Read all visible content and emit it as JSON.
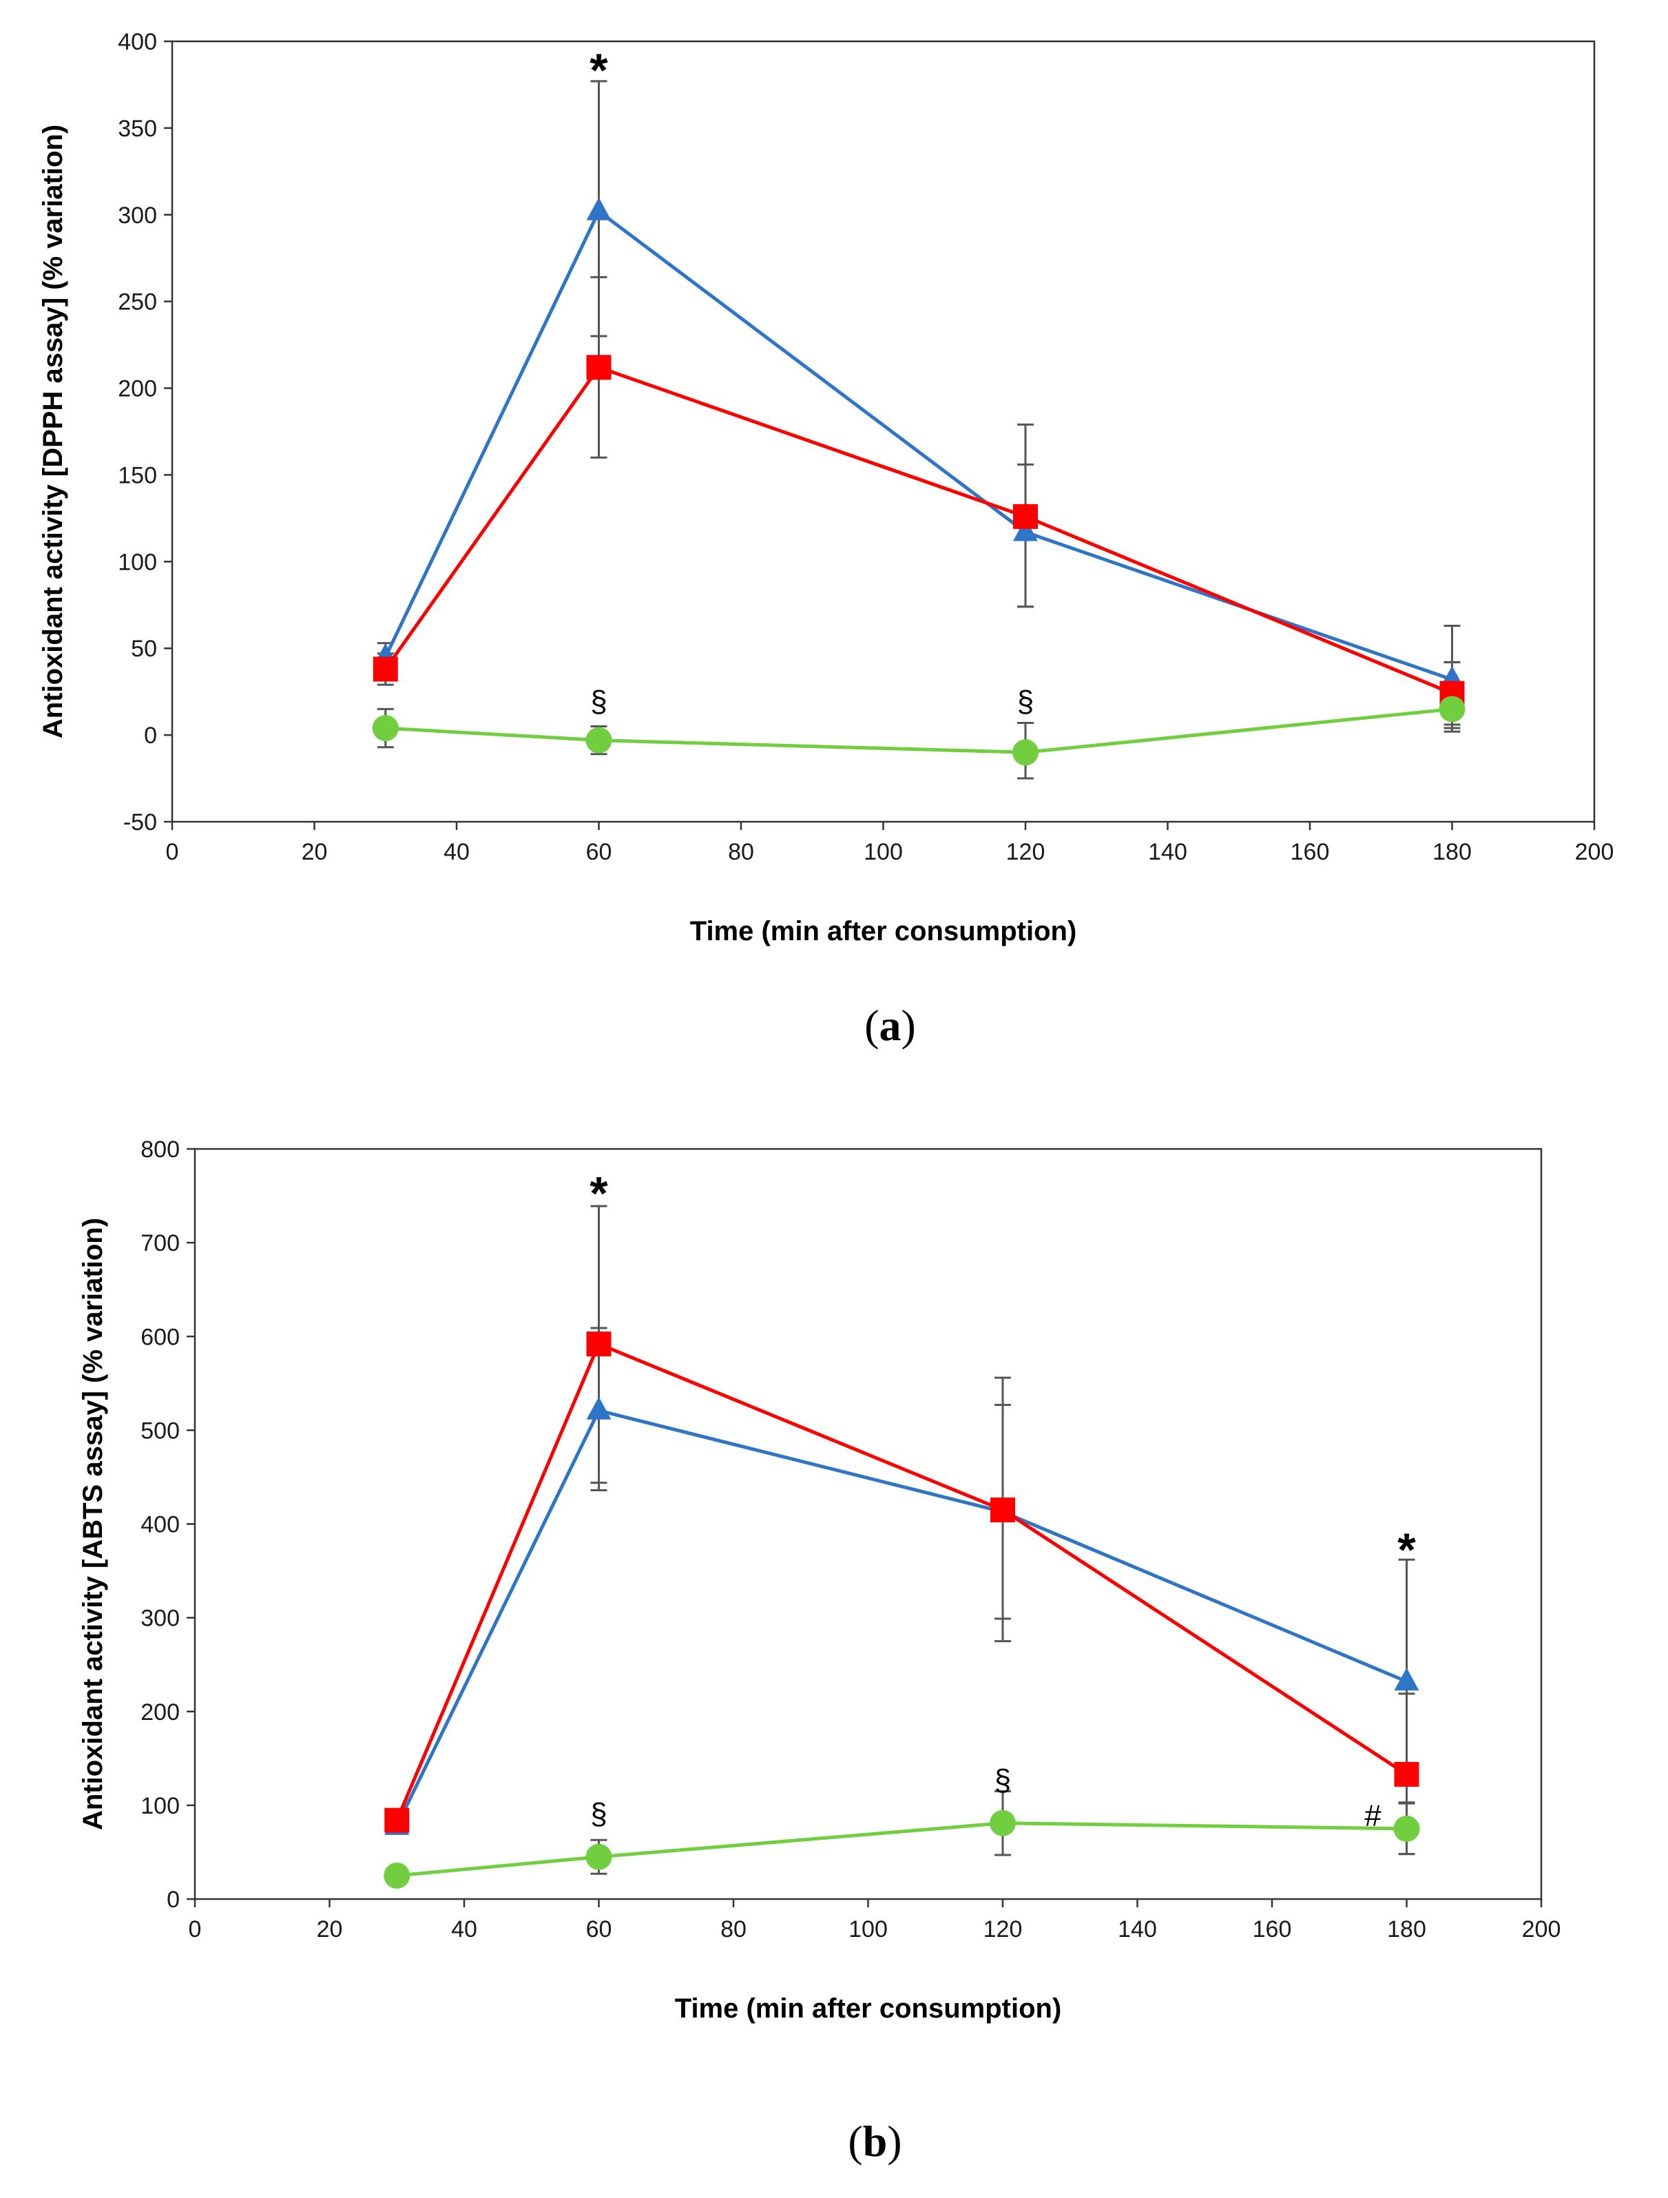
{
  "chart_data": [
    {
      "type": "line",
      "panel_label": "(a)",
      "panel_letter": "a",
      "xlabel": "Time (min after consumption)",
      "ylabel": "Antioxidant activity [DPPH assay] (% variation)",
      "xlim": [
        0,
        200
      ],
      "ylim": [
        -50,
        400
      ],
      "xticks": [
        0,
        20,
        40,
        60,
        80,
        100,
        120,
        140,
        160,
        180,
        200
      ],
      "yticks": [
        -50,
        0,
        50,
        100,
        150,
        200,
        250,
        300,
        350,
        400
      ],
      "x": [
        30,
        60,
        120,
        180
      ],
      "series": [
        {
          "name": "blue-triangle",
          "color": "#2e75c8",
          "marker": "triangle",
          "values": [
            45,
            302,
            117,
            32
          ],
          "err_up": [
            8,
            75,
            62,
            31
          ],
          "err_down": [
            8,
            72,
            43,
            28
          ]
        },
        {
          "name": "red-square",
          "color": "#ff0000",
          "marker": "square",
          "values": [
            38,
            212,
            126,
            24
          ],
          "err_up": [
            9,
            52,
            30,
            18
          ],
          "err_down": [
            9,
            52,
            52,
            18
          ]
        },
        {
          "name": "green-circle",
          "color": "#70ce3f",
          "marker": "circle",
          "values": [
            4,
            -3,
            -10,
            15
          ],
          "err_up": [
            11,
            8,
            17,
            27
          ],
          "err_down": [
            11,
            8,
            15,
            13
          ]
        }
      ],
      "annotations": [
        {
          "text": "*",
          "x": 60,
          "y": 390,
          "size": "large"
        },
        {
          "text": "§",
          "x": 60,
          "y": 20,
          "size": "small"
        },
        {
          "text": "§",
          "x": 120,
          "y": 20,
          "size": "small"
        }
      ]
    },
    {
      "type": "line",
      "panel_label": "(b)",
      "panel_letter": "b",
      "xlabel": "Time (min after consumption)",
      "ylabel": "Antioxidant activity [ABTS assay] (% variation)",
      "xlim": [
        0,
        200
      ],
      "ylim": [
        0,
        800
      ],
      "xticks": [
        0,
        20,
        40,
        60,
        80,
        100,
        120,
        140,
        160,
        180,
        200
      ],
      "yticks": [
        0,
        100,
        200,
        300,
        400,
        500,
        600,
        700,
        800
      ],
      "x": [
        30,
        60,
        120,
        180
      ],
      "series": [
        {
          "name": "blue-triangle",
          "color": "#2e75c8",
          "marker": "triangle",
          "values": [
            78,
            521,
            413,
            232
          ],
          "err_up": [
            0,
            88,
            143,
            130
          ],
          "err_down": [
            0,
            85,
            114,
            130
          ]
        },
        {
          "name": "red-square",
          "color": "#ff0000",
          "marker": "square",
          "values": [
            84,
            592,
            415,
            133
          ],
          "err_up": [
            0,
            147,
            112,
            86
          ],
          "err_down": [
            0,
            148,
            140,
            85
          ]
        },
        {
          "name": "green-circle",
          "color": "#70ce3f",
          "marker": "circle",
          "values": [
            25,
            45,
            81,
            75
          ],
          "err_up": [
            0,
            18,
            34,
            28
          ],
          "err_down": [
            0,
            18,
            34,
            27
          ]
        }
      ],
      "annotations": [
        {
          "text": "*",
          "x": 60,
          "y": 765,
          "size": "large"
        },
        {
          "text": "*",
          "x": 180,
          "y": 385,
          "size": "large"
        },
        {
          "text": "§",
          "x": 60,
          "y": 92,
          "size": "small"
        },
        {
          "text": "§",
          "x": 120,
          "y": 128,
          "size": "small"
        },
        {
          "text": "#",
          "x": 175,
          "y": 90,
          "size": "small"
        }
      ]
    }
  ]
}
